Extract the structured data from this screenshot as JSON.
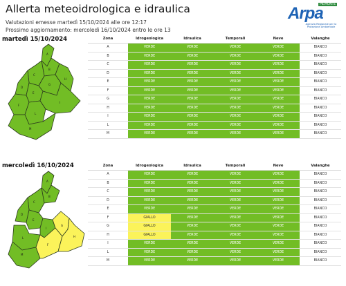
{
  "header": {
    "title": "Allerta meteoidrologica e idraulica",
    "issued": "Valutazioni emesse martedì 15/10/2024 alle ore 12:17",
    "next_update": "Prossimo aggiornamento: mercoledì 16/10/2024 entro le ore 13"
  },
  "logo": {
    "name": "Arpa",
    "tag": "PIEMONTE",
    "subtitle": "Agenzia Regionale per la Protezione Ambientale"
  },
  "columns": [
    "Zona",
    "Idrogeologica",
    "Idraulica",
    "Temporali",
    "Neve",
    "Valanghe"
  ],
  "colors": {
    "verde": "#72bd25",
    "giallo": "#fbf35a",
    "bianco": "#ffffff"
  },
  "days": [
    {
      "date_label": "martedì 15/10/2024",
      "rows": [
        {
          "zona": "A",
          "idrogeologica": "VERDE",
          "idraulica": "VERDE",
          "temporali": "VERDE",
          "neve": "VERDE",
          "valanghe": "BIANCO"
        },
        {
          "zona": "B",
          "idrogeologica": "VERDE",
          "idraulica": "VERDE",
          "temporali": "VERDE",
          "neve": "VERDE",
          "valanghe": "BIANCO"
        },
        {
          "zona": "C",
          "idrogeologica": "VERDE",
          "idraulica": "VERDE",
          "temporali": "VERDE",
          "neve": "VERDE",
          "valanghe": "BIANCO"
        },
        {
          "zona": "D",
          "idrogeologica": "VERDE",
          "idraulica": "VERDE",
          "temporali": "VERDE",
          "neve": "VERDE",
          "valanghe": "BIANCO"
        },
        {
          "zona": "E",
          "idrogeologica": "VERDE",
          "idraulica": "VERDE",
          "temporali": "VERDE",
          "neve": "VERDE",
          "valanghe": "BIANCO"
        },
        {
          "zona": "F",
          "idrogeologica": "VERDE",
          "idraulica": "VERDE",
          "temporali": "VERDE",
          "neve": "VERDE",
          "valanghe": "BIANCO"
        },
        {
          "zona": "G",
          "idrogeologica": "VERDE",
          "idraulica": "VERDE",
          "temporali": "VERDE",
          "neve": "VERDE",
          "valanghe": "BIANCO"
        },
        {
          "zona": "H",
          "idrogeologica": "VERDE",
          "idraulica": "VERDE",
          "temporali": "VERDE",
          "neve": "VERDE",
          "valanghe": "BIANCO"
        },
        {
          "zona": "I",
          "idrogeologica": "VERDE",
          "idraulica": "VERDE",
          "temporali": "VERDE",
          "neve": "VERDE",
          "valanghe": "BIANCO"
        },
        {
          "zona": "L",
          "idrogeologica": "VERDE",
          "idraulica": "VERDE",
          "temporali": "VERDE",
          "neve": "VERDE",
          "valanghe": "BIANCO"
        },
        {
          "zona": "M",
          "idrogeologica": "VERDE",
          "idraulica": "VERDE",
          "temporali": "VERDE",
          "neve": "VERDE",
          "valanghe": "BIANCO"
        }
      ]
    },
    {
      "date_label": "mercoledì 16/10/2024",
      "rows": [
        {
          "zona": "A",
          "idrogeologica": "VERDE",
          "idraulica": "VERDE",
          "temporali": "VERDE",
          "neve": "VERDE",
          "valanghe": "BIANCO"
        },
        {
          "zona": "B",
          "idrogeologica": "VERDE",
          "idraulica": "VERDE",
          "temporali": "VERDE",
          "neve": "VERDE",
          "valanghe": "BIANCO"
        },
        {
          "zona": "C",
          "idrogeologica": "VERDE",
          "idraulica": "VERDE",
          "temporali": "VERDE",
          "neve": "VERDE",
          "valanghe": "BIANCO"
        },
        {
          "zona": "D",
          "idrogeologica": "VERDE",
          "idraulica": "VERDE",
          "temporali": "VERDE",
          "neve": "VERDE",
          "valanghe": "BIANCO"
        },
        {
          "zona": "E",
          "idrogeologica": "VERDE",
          "idraulica": "VERDE",
          "temporali": "VERDE",
          "neve": "VERDE",
          "valanghe": "BIANCO"
        },
        {
          "zona": "F",
          "idrogeologica": "GIALLO",
          "idraulica": "VERDE",
          "temporali": "VERDE",
          "neve": "VERDE",
          "valanghe": "BIANCO"
        },
        {
          "zona": "G",
          "idrogeologica": "GIALLO",
          "idraulica": "VERDE",
          "temporali": "VERDE",
          "neve": "VERDE",
          "valanghe": "BIANCO"
        },
        {
          "zona": "H",
          "idrogeologica": "GIALLO",
          "idraulica": "VERDE",
          "temporali": "VERDE",
          "neve": "VERDE",
          "valanghe": "BIANCO"
        },
        {
          "zona": "I",
          "idrogeologica": "VERDE",
          "idraulica": "VERDE",
          "temporali": "VERDE",
          "neve": "VERDE",
          "valanghe": "BIANCO"
        },
        {
          "zona": "L",
          "idrogeologica": "VERDE",
          "idraulica": "VERDE",
          "temporali": "VERDE",
          "neve": "VERDE",
          "valanghe": "BIANCO"
        },
        {
          "zona": "M",
          "idrogeologica": "VERDE",
          "idraulica": "VERDE",
          "temporali": "VERDE",
          "neve": "VERDE",
          "valanghe": "BIANCO"
        }
      ]
    }
  ]
}
